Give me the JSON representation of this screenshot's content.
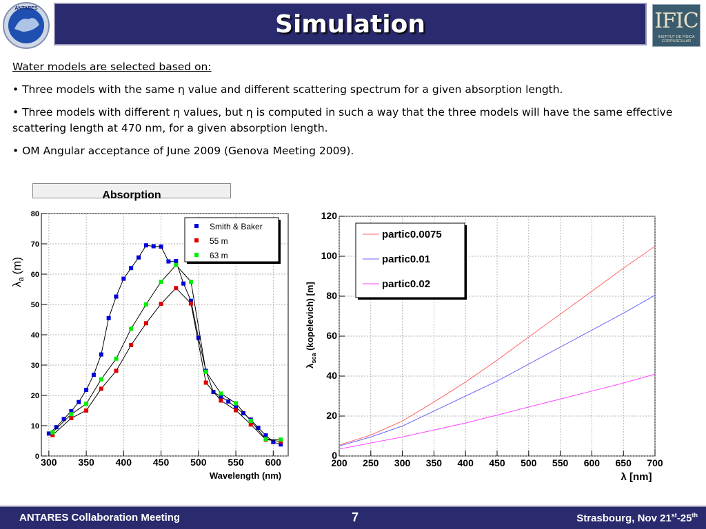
{
  "header": {
    "title": "Simulation",
    "left_logo_text": "ANTARES",
    "right_logo_text": "IFIC",
    "right_logo_subtext": "INSTITUT DE FÍSICA CORPUSCULAR"
  },
  "content": {
    "intro": "Water models are selected based on:",
    "bullets": [
      "• Three models with the same η value and different scattering spectrum for a given absorption length.",
      "• Three models with different η values, but η is computed in such a way that the three models will have the same effective scattering length at 470 nm, for a given absorption length.",
      "• OM Angular acceptance of June 2009 (Genova Meeting 2009)."
    ]
  },
  "chart_data": [
    {
      "type": "line",
      "title": "Absorption",
      "xlabel": "Wavelength (nm)",
      "ylabel": "λa (m)",
      "ylabel_main": "λ",
      "ylabel_sub": "a",
      "ylabel_unit": "(m)",
      "xlim": [
        290,
        620
      ],
      "ylim": [
        0,
        80
      ],
      "xticks": [
        300,
        350,
        400,
        450,
        500,
        550,
        600
      ],
      "yticks": [
        0,
        10,
        20,
        30,
        40,
        50,
        60,
        70,
        80
      ],
      "grid": true,
      "legend": "top-right",
      "series": [
        {
          "name": "Smith & Baker",
          "color": "#0000dd",
          "x": [
            300,
            310,
            320,
            330,
            340,
            350,
            360,
            370,
            380,
            390,
            400,
            410,
            420,
            430,
            440,
            450,
            460,
            470,
            480,
            490,
            500,
            510,
            520,
            530,
            540,
            550,
            560,
            570,
            580,
            590,
            600,
            610
          ],
          "y": [
            7.4,
            9.5,
            12.2,
            14.8,
            17.8,
            21.8,
            26.8,
            33.5,
            45.5,
            52.6,
            58.5,
            62,
            65.5,
            69.5,
            69.2,
            69.1,
            64.2,
            64.3,
            56.9,
            51.2,
            39,
            28.1,
            21.1,
            19.6,
            18,
            16,
            14.1,
            12,
            9.3,
            6.8,
            4.6,
            3.8
          ]
        },
        {
          "name": "55 m",
          "color": "#dd0000",
          "x": [
            305,
            330,
            350,
            370,
            390,
            410,
            430,
            450,
            470,
            490,
            510,
            530,
            550,
            570,
            590,
            610
          ],
          "y": [
            6.9,
            12.5,
            15,
            22.2,
            28.1,
            36.6,
            43.8,
            50.2,
            55.4,
            50.3,
            24.2,
            18.3,
            15.1,
            10.4,
            5.4,
            4.8
          ]
        },
        {
          "name": "63 m",
          "color": "#00ee00",
          "x": [
            305,
            330,
            350,
            370,
            390,
            410,
            430,
            450,
            470,
            490,
            510,
            530,
            550,
            570,
            590,
            610
          ],
          "y": [
            7.8,
            13.8,
            17.2,
            25.3,
            32.1,
            42,
            50,
            57.5,
            63,
            57.5,
            27.8,
            20.6,
            17.4,
            11.6,
            5.6,
            5.4
          ]
        }
      ]
    },
    {
      "type": "line",
      "title": "",
      "xlabel": "λ [nm]",
      "ylabel": "λsca (kopelevich) [m]",
      "ylabel_main": "λ",
      "ylabel_sub": "sca",
      "ylabel_rest": " (kopelevich) [m]",
      "xlim": [
        200,
        700
      ],
      "ylim": [
        0,
        120
      ],
      "xticks": [
        200,
        250,
        300,
        350,
        400,
        450,
        500,
        550,
        600,
        650,
        700
      ],
      "yticks": [
        0,
        20,
        40,
        60,
        80,
        100,
        120
      ],
      "grid": true,
      "legend": "top-left",
      "series": [
        {
          "name": "partic0.0075",
          "color": "#ff6666",
          "x": [
            200,
            250,
            300,
            350,
            400,
            450,
            500,
            550,
            600,
            650,
            700
          ],
          "y": [
            5.5,
            10.5,
            17.5,
            27,
            37,
            48,
            59.5,
            71,
            82.5,
            94,
            105
          ]
        },
        {
          "name": "partic0.01",
          "color": "#6666ff",
          "x": [
            200,
            250,
            300,
            350,
            400,
            450,
            500,
            550,
            600,
            650,
            700
          ],
          "y": [
            5,
            9.5,
            15,
            22.5,
            30,
            37.5,
            46,
            54.5,
            63,
            71.5,
            80.5
          ]
        },
        {
          "name": "partic0.02",
          "color": "#ff44ff",
          "x": [
            200,
            250,
            300,
            350,
            400,
            450,
            500,
            550,
            600,
            650,
            700
          ],
          "y": [
            3.5,
            6.5,
            9.5,
            13,
            16.5,
            20.5,
            24.5,
            28.5,
            32.5,
            36.5,
            41
          ]
        }
      ]
    }
  ],
  "footer": {
    "left": "ANTARES Collaboration Meeting",
    "page": "7",
    "right_main": "Strasbourg, Nov 21",
    "right_sup1": "st",
    "right_dash": "-25",
    "right_sup2": "th"
  }
}
